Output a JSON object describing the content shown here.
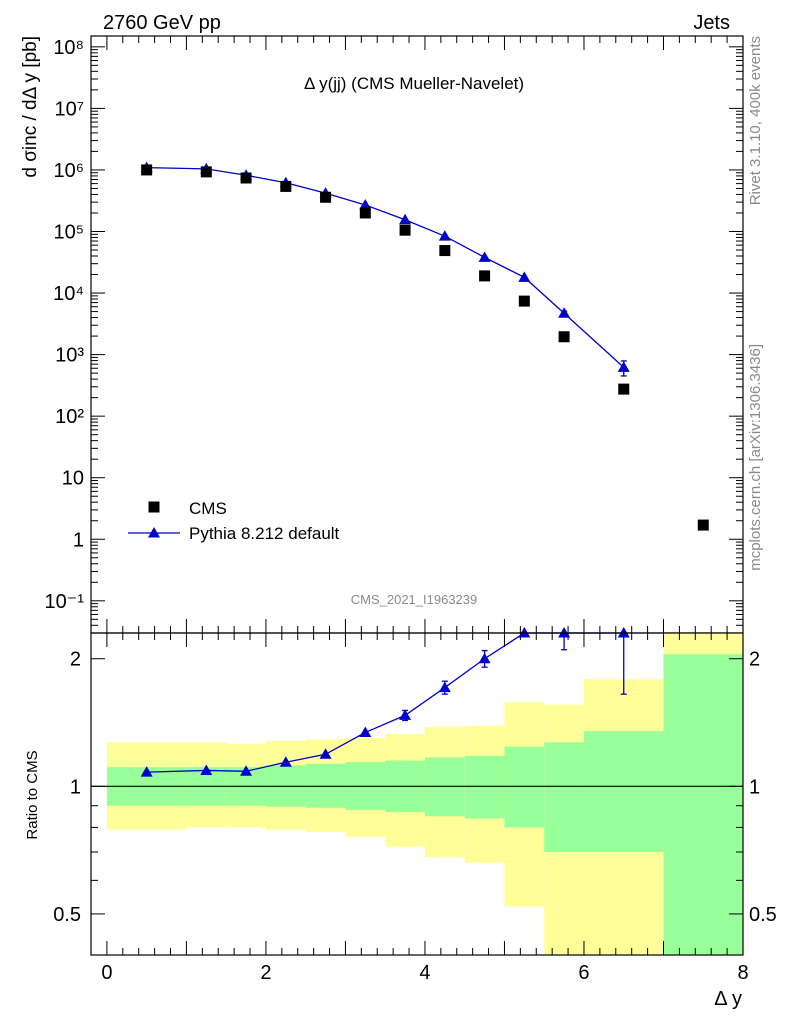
{
  "header": {
    "left": "2760 GeV pp",
    "right": "Jets"
  },
  "side_labels": {
    "top": "Rivet 3.1.10,  400k events",
    "bottom": "mcplots.cern.ch [arXiv:1306.3436]"
  },
  "watermark": "CMS_2021_I1963239",
  "colors": {
    "mc": "#0000cc",
    "band_outer": "#ffff99",
    "band_inner": "#99ff99",
    "data": "#000000",
    "text_gray": "#8a8a8a"
  },
  "chart_data": [
    {
      "type": "scatter",
      "title": "Δ y(jj) (CMS Mueller-Navelet)",
      "ylabel": "d σinc / dΔ y [pb]",
      "yscale": "log",
      "ylim": [
        0.03,
        150000000
      ],
      "xlim": [
        -0.2,
        8.0
      ],
      "y_ticks": [
        "10⁻¹",
        "1",
        "10",
        "10²",
        "10³",
        "10⁴",
        "10⁵",
        "10⁶",
        "10⁷",
        "10⁸"
      ],
      "legend_position": "bottom-left",
      "series": [
        {
          "name": "CMS",
          "marker": "square",
          "x": [
            0.5,
            1.25,
            1.75,
            2.25,
            2.75,
            3.25,
            3.75,
            4.25,
            4.75,
            5.25,
            5.75,
            6.5,
            7.5
          ],
          "y": [
            1000000,
            930000,
            740000,
            540000,
            360000,
            200000,
            105000,
            49000,
            19000,
            7400,
            1950,
            275,
            1.7
          ]
        },
        {
          "name": "Pythia 8.212 default",
          "marker": "triangle",
          "x": [
            0.5,
            1.25,
            1.75,
            2.25,
            2.75,
            3.25,
            3.75,
            4.25,
            4.75,
            5.25,
            5.75,
            6.5
          ],
          "y": [
            1090000,
            1040000,
            820000,
            620000,
            420000,
            270000,
            155000,
            84000,
            38000,
            18000,
            4700,
            620
          ],
          "yerr": [
            0,
            0,
            0,
            0,
            0,
            0,
            0,
            0,
            0,
            0,
            400,
            170
          ]
        }
      ]
    },
    {
      "type": "line",
      "ylabel": "Ratio to CMS",
      "xlabel": "Δ y",
      "yscale": "log",
      "ylim": [
        0.4,
        2.3
      ],
      "xlim": [
        -0.2,
        8.0
      ],
      "x_ticks": [
        "0",
        "2",
        "4",
        "6",
        "8"
      ],
      "y_ticks": [
        "0.5",
        "1",
        "2"
      ],
      "reference_line": 1,
      "bands": {
        "edges": [
          0,
          1,
          1.5,
          2,
          2.5,
          3,
          3.5,
          4,
          4.5,
          5,
          5.5,
          6,
          7,
          8
        ],
        "inner_low": [
          0.9,
          0.9,
          0.9,
          0.895,
          0.89,
          0.88,
          0.87,
          0.85,
          0.84,
          0.8,
          0.7,
          0.7,
          0.3
        ],
        "inner_high": [
          1.11,
          1.11,
          1.11,
          1.12,
          1.13,
          1.14,
          1.15,
          1.17,
          1.18,
          1.24,
          1.27,
          1.35,
          2.05
        ],
        "outer_low": [
          0.79,
          0.8,
          0.8,
          0.79,
          0.78,
          0.76,
          0.72,
          0.68,
          0.66,
          0.52,
          0.36,
          0.36,
          0.3
        ],
        "outer_high": [
          1.27,
          1.27,
          1.26,
          1.28,
          1.29,
          1.3,
          1.33,
          1.38,
          1.39,
          1.58,
          1.56,
          1.79,
          2.5
        ]
      },
      "series": [
        {
          "name": "Pythia 8.212 default",
          "x": [
            0.5,
            1.25,
            1.75,
            2.25,
            2.75,
            3.25,
            3.75,
            4.25,
            4.75,
            5.25,
            5.75,
            6.5
          ],
          "y": [
            1.08,
            1.09,
            1.085,
            1.14,
            1.19,
            1.34,
            1.47,
            1.71,
            2.0,
            2.45,
            2.55,
            2.3
          ],
          "yerr": [
            0.0,
            0.0,
            0.0,
            0.0,
            0.0,
            0.0,
            0.04,
            0.06,
            0.09,
            0.14,
            0.45,
            0.65
          ]
        }
      ]
    }
  ]
}
